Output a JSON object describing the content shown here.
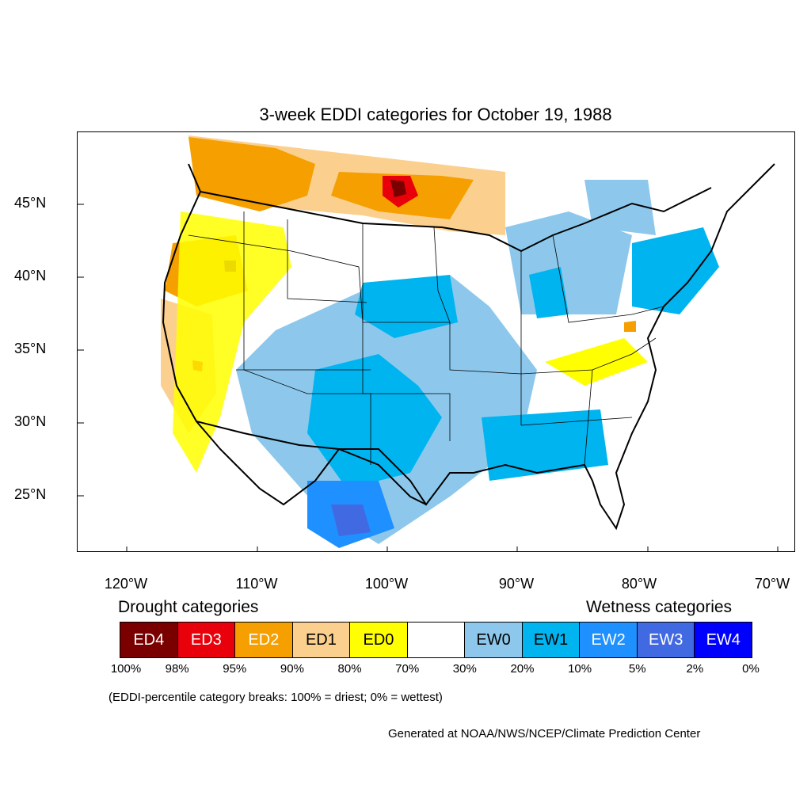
{
  "title": "3-week EDDI categories for October 19, 1988",
  "map": {
    "latitude_labels": [
      "45°N",
      "40°N",
      "35°N",
      "30°N",
      "25°N"
    ],
    "longitude_labels": [
      "120°W",
      "110°W",
      "100°W",
      "90°W",
      "80°W",
      "70°W"
    ],
    "colors": {
      "ED4": "#7a0000",
      "ED3": "#e8000b",
      "ED2": "#f5a000",
      "ED1": "#fbd08f",
      "ED0": "#ffff00",
      "neutral": "#ffffff",
      "EW0": "#8dc8ec",
      "EW1": "#00b4f0",
      "EW2": "#1e90ff",
      "EW3": "#4169e1",
      "EW4": "#0000ff"
    }
  },
  "legend": {
    "drought_heading": "Drought categories",
    "wetness_heading": "Wetness categories",
    "categories": [
      {
        "label": "ED4",
        "color": "#7a0000",
        "text_color": "#ffffff"
      },
      {
        "label": "ED3",
        "color": "#e8000b",
        "text_color": "#ffffff"
      },
      {
        "label": "ED2",
        "color": "#f5a000",
        "text_color": "#ffffff"
      },
      {
        "label": "ED1",
        "color": "#fbd08f",
        "text_color": "#000000"
      },
      {
        "label": "ED0",
        "color": "#ffff00",
        "text_color": "#000000"
      },
      {
        "label": "",
        "color": "#ffffff",
        "text_color": "#000000"
      },
      {
        "label": "EW0",
        "color": "#8dc8ec",
        "text_color": "#000000"
      },
      {
        "label": "EW1",
        "color": "#00b4f0",
        "text_color": "#000000"
      },
      {
        "label": "EW2",
        "color": "#1e90ff",
        "text_color": "#ffffff"
      },
      {
        "label": "EW3",
        "color": "#4169e1",
        "text_color": "#ffffff"
      },
      {
        "label": "EW4",
        "color": "#0000ff",
        "text_color": "#ffffff"
      }
    ],
    "percent_breaks": [
      "100%",
      "98%",
      "95%",
      "90%",
      "80%",
      "70%",
      "30%",
      "20%",
      "10%",
      "5%",
      "2%",
      "0%"
    ]
  },
  "note": "(EDDI-percentile category breaks: 100% = driest; 0% = wettest)",
  "credit": "Generated at NOAA/NWS/NCEP/Climate Prediction Center"
}
